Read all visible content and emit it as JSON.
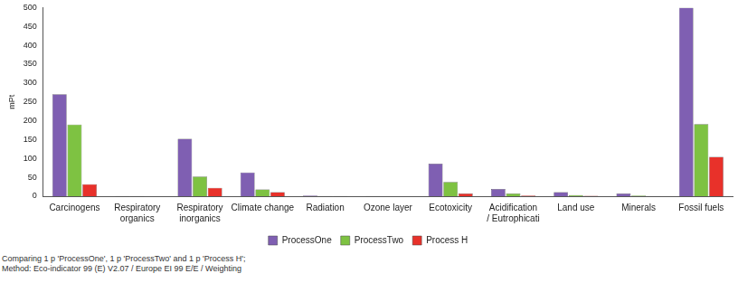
{
  "chart_data": {
    "type": "bar",
    "y_label": "mPt",
    "categories": [
      "Carcinogens",
      "Respiratory organics",
      "Respiratory inorganics",
      "Climate change",
      "Radiation",
      "Ozone layer",
      "Ecotoxicity",
      "Acidification / Eutrophicati",
      "Land use",
      "Minerals",
      "Fossil fuels"
    ],
    "series": [
      {
        "name": "ProcessOne",
        "color": "#7f5fb2",
        "values": [
          270,
          0.5,
          152,
          63,
          2,
          0.3,
          86,
          19,
          11,
          7,
          500
        ]
      },
      {
        "name": "ProcessTwo",
        "color": "#7ec242",
        "values": [
          190,
          0.3,
          52,
          18,
          0.5,
          0.1,
          38,
          7,
          3,
          2,
          191
        ]
      },
      {
        "name": "Process H",
        "color": "#e8312a",
        "values": [
          32,
          0.1,
          22,
          11,
          0.3,
          0.1,
          7,
          2,
          1,
          0.5,
          104
        ]
      }
    ],
    "ylim": [
      0,
      500
    ],
    "yticks": [
      0,
      50,
      100,
      150,
      200,
      250,
      300,
      350,
      400,
      450,
      500
    ],
    "grid": false,
    "legend": "bottom",
    "footer": [
      "Comparing 1 p 'ProcessOne', 1 p 'ProcessTwo' and 1 p 'Process H';",
      "Method: Eco-indicator 99 (E) V2.07 / Europe EI 99 E/E / Weighting"
    ]
  }
}
